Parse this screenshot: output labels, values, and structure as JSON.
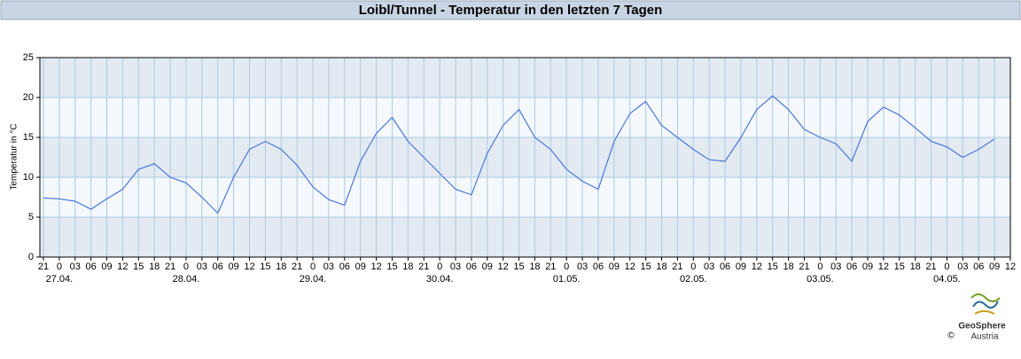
{
  "chart_data": {
    "type": "line",
    "title": "Loibl/Tunnel - Temperatur in den letzten 7 Tagen",
    "y_label": "Temperatur in °C",
    "categories": [
      "21",
      "0",
      "03",
      "06",
      "09",
      "12",
      "15",
      "18",
      "21",
      "0",
      "03",
      "06",
      "09",
      "12",
      "15",
      "18",
      "21",
      "0",
      "03",
      "06",
      "09",
      "12",
      "15",
      "18",
      "21",
      "0",
      "03",
      "06",
      "09",
      "12",
      "15",
      "18",
      "21",
      "0",
      "03",
      "06",
      "09",
      "12",
      "15",
      "18",
      "21",
      "0",
      "03",
      "06",
      "09",
      "12",
      "15",
      "18",
      "21",
      "0",
      "03",
      "06",
      "09",
      "12",
      "15",
      "18",
      "21",
      "0",
      "03",
      "06",
      "09",
      "12"
    ],
    "dates": [
      null,
      "27.04.",
      null,
      null,
      null,
      null,
      null,
      null,
      null,
      "28.04.",
      null,
      null,
      null,
      null,
      null,
      null,
      null,
      "29.04.",
      null,
      null,
      null,
      null,
      null,
      null,
      null,
      "30.04.",
      null,
      null,
      null,
      null,
      null,
      null,
      null,
      "01.05.",
      null,
      null,
      null,
      null,
      null,
      null,
      null,
      "02.05.",
      null,
      null,
      null,
      null,
      null,
      null,
      null,
      "03.05.",
      null,
      null,
      null,
      null,
      null,
      null,
      null,
      "04.05.",
      null,
      null,
      null,
      null
    ],
    "values": [
      7.4,
      7.3,
      7.0,
      6.0,
      7.3,
      8.5,
      11,
      11.7,
      10.0,
      9.3,
      7.5,
      5.5,
      10,
      13.5,
      14.5,
      13.5,
      11.5,
      8.8,
      7.2,
      6.5,
      12,
      15.5,
      17.5,
      14.5,
      12.5,
      10.5,
      8.5,
      7.8,
      13,
      16.5,
      18.5,
      15,
      13.5,
      11,
      9.5,
      8.5,
      14.5,
      18,
      19.5,
      16.5,
      15,
      13.5,
      12.2,
      12,
      15,
      18.5,
      20.2,
      18.5,
      16,
      15,
      14.2,
      12,
      17,
      18.8,
      17.8,
      16.2,
      14.5,
      13.8,
      12.5,
      13.5,
      14.8,
      null
    ],
    "color": "#4a78d8",
    "ylim": [
      0,
      25
    ],
    "yticks": [
      0,
      5,
      10,
      15,
      20,
      25
    ],
    "grid": true
  },
  "logo": {
    "name": "GeoSphere",
    "sub": "Austria",
    "copyright": "©"
  }
}
